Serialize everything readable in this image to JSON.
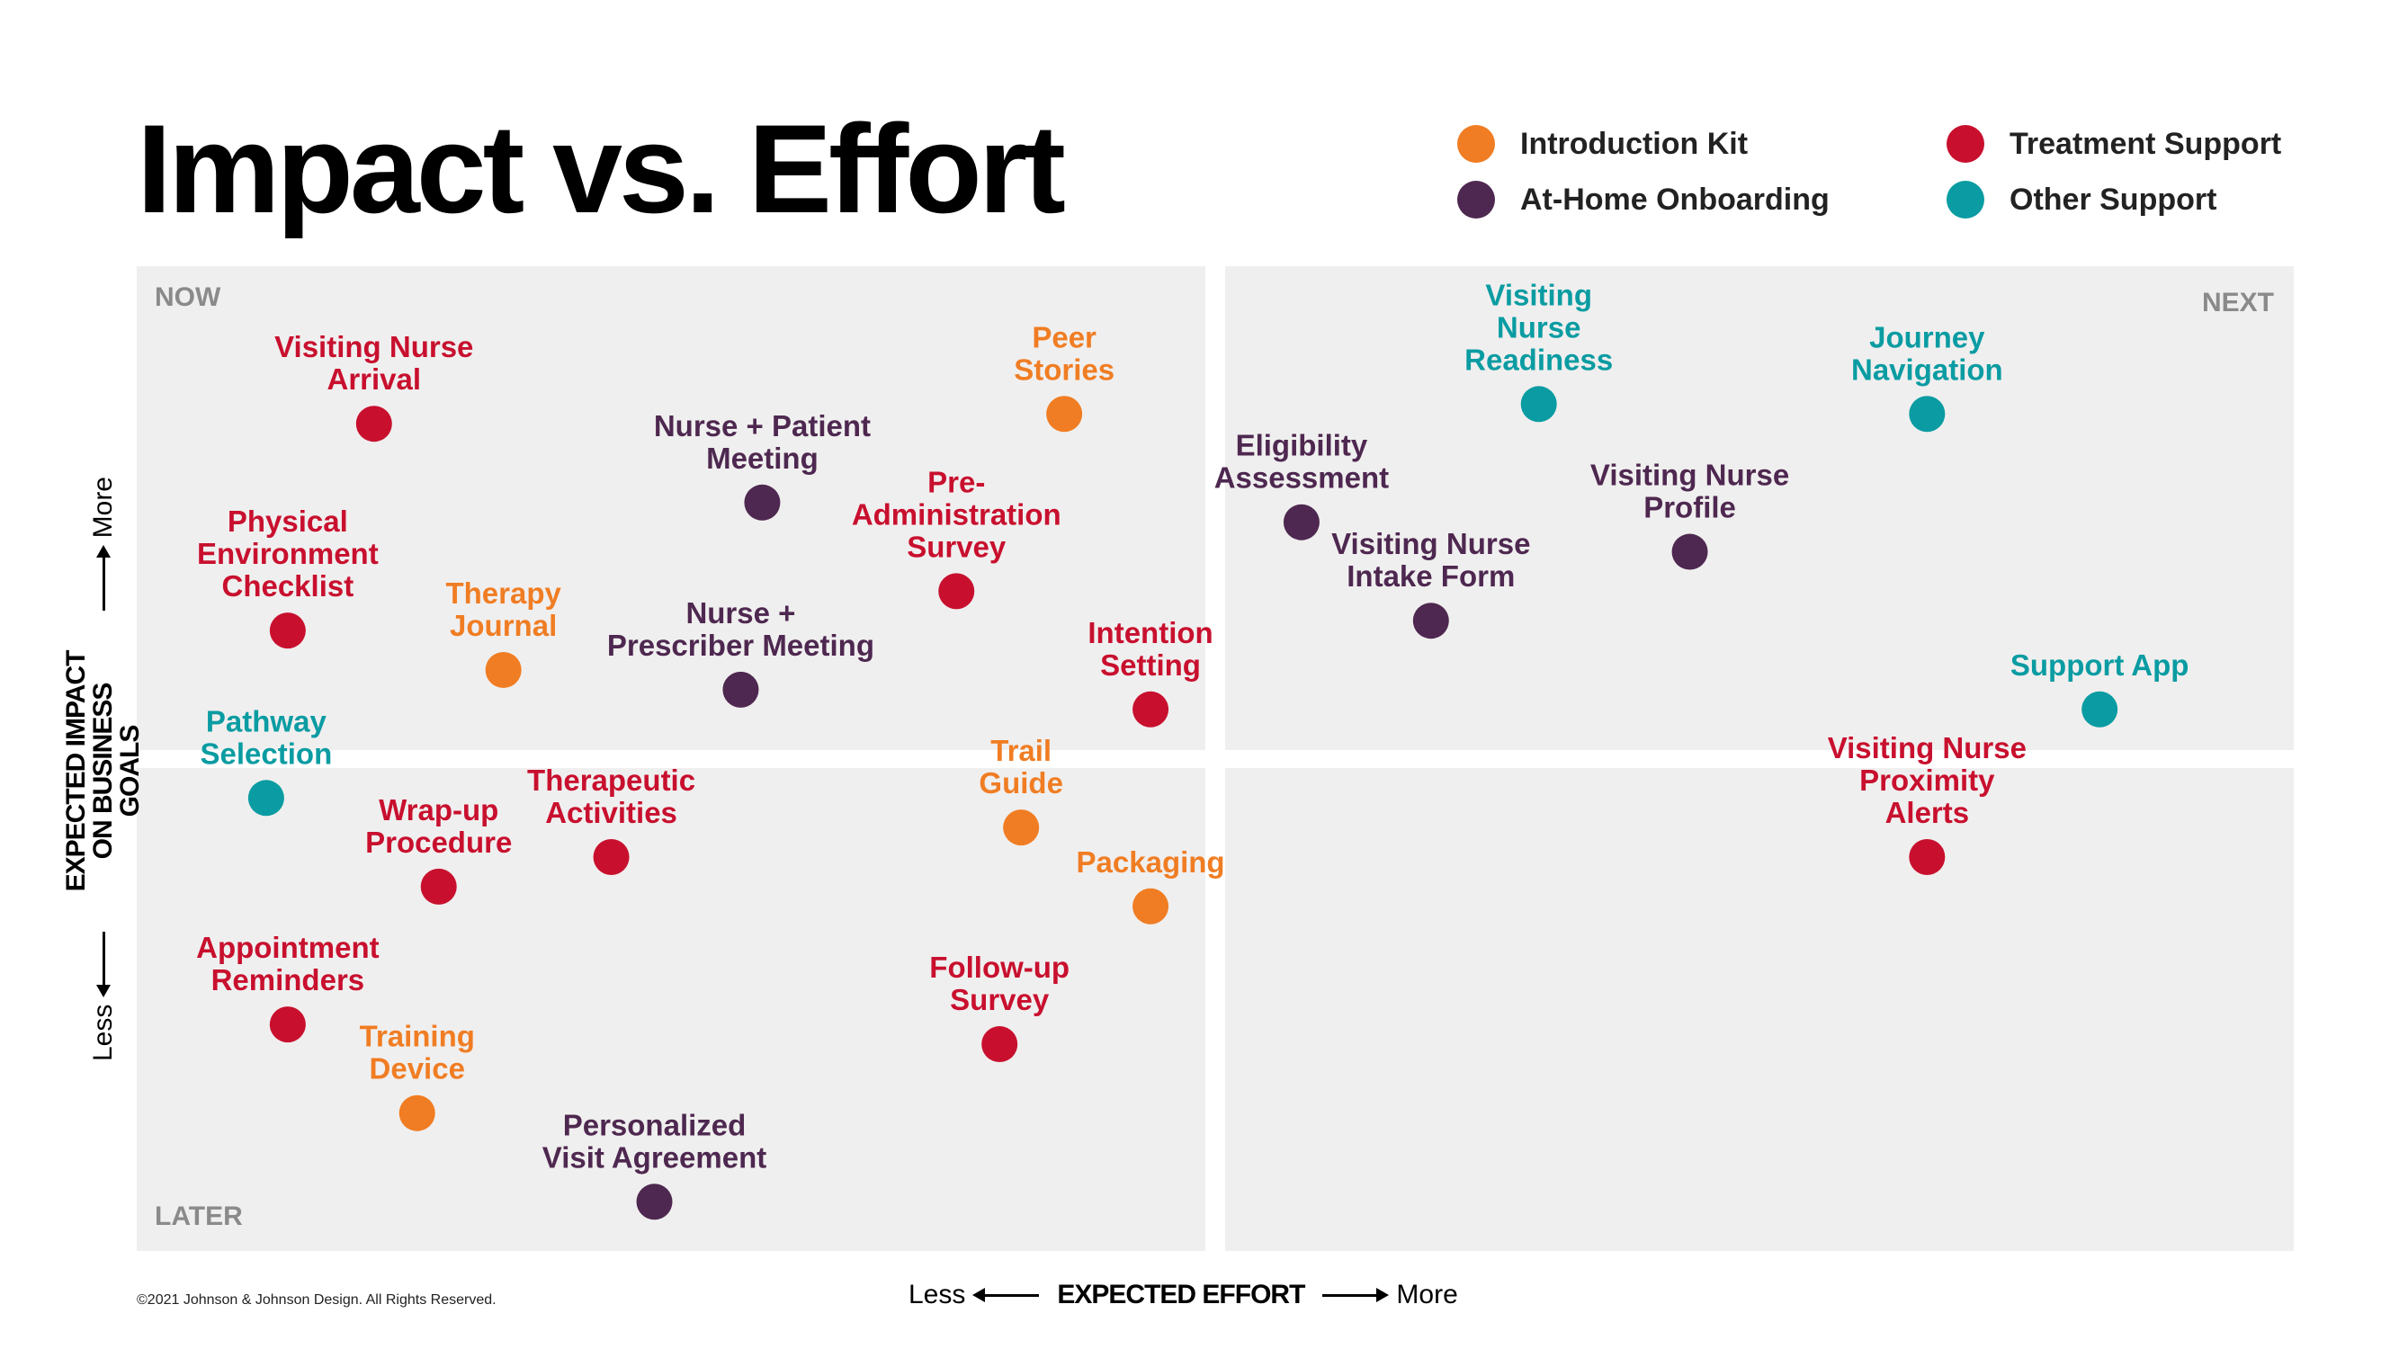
{
  "title": "Impact vs. Effort",
  "copyright": "©2021 Johnson & Johnson Design. All Rights Reserved.",
  "quadrants": {
    "top_left": "NOW",
    "top_right": "NEXT",
    "bottom_left": "LATER",
    "bottom_right": ""
  },
  "axes": {
    "x_title": "EXPECTED EFFORT",
    "x_less": "Less",
    "x_more": "More",
    "y_title_line1": "EXPECTED IMPACT",
    "y_title_line2": "ON BUSINESS GOALS",
    "y_less": "Less",
    "y_more": "More"
  },
  "legend": [
    {
      "label": "Introduction Kit",
      "color": "#f07d23"
    },
    {
      "label": "At-Home Onboarding",
      "color": "#4e2850"
    },
    {
      "label": "Treatment Support",
      "color": "#c8102e"
    },
    {
      "label": "Other Support",
      "color": "#0a9ca2"
    }
  ],
  "chart_data": {
    "type": "scatter",
    "title": "Impact vs. Effort",
    "xlabel": "EXPECTED EFFORT",
    "ylabel": "EXPECTED IMPACT ON BUSINESS GOALS",
    "grid": false,
    "legend_position": "top-right",
    "x_description": "relative effort, 0 (less) to 100 (more)",
    "y_description": "relative impact, 0 (less) to 100 (more)",
    "series": [
      {
        "name": "Introduction Kit",
        "color": "#f07d23",
        "points": [
          {
            "label": [
              "Peer",
              "Stories"
            ],
            "x": 43,
            "y": 85
          },
          {
            "label": [
              "Therapy",
              "Journal"
            ],
            "x": 17,
            "y": 59
          },
          {
            "label": [
              "Trail",
              "Guide"
            ],
            "x": 41,
            "y": 43
          },
          {
            "label": [
              "Packaging"
            ],
            "x": 47,
            "y": 35
          },
          {
            "label": [
              "Training",
              "Device"
            ],
            "x": 13,
            "y": 14
          }
        ]
      },
      {
        "name": "At-Home Onboarding",
        "color": "#4e2850",
        "points": [
          {
            "label": [
              "Nurse + Patient",
              "Meeting"
            ],
            "x": 29,
            "y": 76
          },
          {
            "label": [
              "Nurse +",
              "Prescriber Meeting"
            ],
            "x": 28,
            "y": 57
          },
          {
            "label": [
              "Personalized",
              "Visit Agreement"
            ],
            "x": 24,
            "y": 5
          },
          {
            "label": [
              "Eligibility",
              "Assessment"
            ],
            "x": 54,
            "y": 74
          },
          {
            "label": [
              "Visiting Nurse",
              "Intake Form"
            ],
            "x": 60,
            "y": 64
          },
          {
            "label": [
              "Visiting Nurse",
              "Profile"
            ],
            "x": 72,
            "y": 71
          }
        ]
      },
      {
        "name": "Treatment Support",
        "color": "#c8102e",
        "points": [
          {
            "label": [
              "Visiting Nurse",
              "Arrival"
            ],
            "x": 11,
            "y": 84
          },
          {
            "label": [
              "Physical",
              "Environment",
              "Checklist"
            ],
            "x": 7,
            "y": 63
          },
          {
            "label": [
              "Pre-",
              "Administration",
              "Survey"
            ],
            "x": 38,
            "y": 67
          },
          {
            "label": [
              "Intention",
              "Setting"
            ],
            "x": 47,
            "y": 55
          },
          {
            "label": [
              "Therapeutic",
              "Activities"
            ],
            "x": 22,
            "y": 40
          },
          {
            "label": [
              "Wrap-up",
              "Procedure"
            ],
            "x": 14,
            "y": 37
          },
          {
            "label": [
              "Appointment",
              "Reminders"
            ],
            "x": 7,
            "y": 23
          },
          {
            "label": [
              "Follow-up",
              "Survey"
            ],
            "x": 40,
            "y": 21
          },
          {
            "label": [
              "Visiting Nurse",
              "Proximity",
              "Alerts"
            ],
            "x": 83,
            "y": 40
          }
        ]
      },
      {
        "name": "Other Support",
        "color": "#0a9ca2",
        "points": [
          {
            "label": [
              "Pathway",
              "Selection"
            ],
            "x": 6,
            "y": 46
          },
          {
            "label": [
              "Visiting",
              "Nurse",
              "Readiness"
            ],
            "x": 65,
            "y": 86
          },
          {
            "label": [
              "Journey",
              "Navigation"
            ],
            "x": 83,
            "y": 85
          },
          {
            "label": [
              "Support App"
            ],
            "x": 91,
            "y": 55
          }
        ]
      }
    ]
  }
}
